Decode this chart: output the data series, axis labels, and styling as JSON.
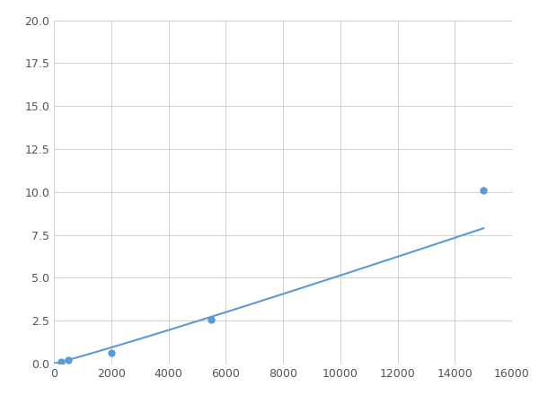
{
  "x": [
    245,
    490,
    2000,
    5500,
    15000
  ],
  "y": [
    0.13,
    0.2,
    0.65,
    2.55,
    10.1
  ],
  "line_color": "#5b9bd5",
  "marker_color": "#5b9bd5",
  "marker_size": 5,
  "xlim": [
    0,
    16000
  ],
  "ylim": [
    0,
    20.0
  ],
  "xticks": [
    0,
    2000,
    4000,
    6000,
    8000,
    10000,
    12000,
    14000,
    16000
  ],
  "yticks": [
    0.0,
    2.5,
    5.0,
    7.5,
    10.0,
    12.5,
    15.0,
    17.5,
    20.0
  ],
  "grid": true,
  "background_color": "#ffffff",
  "figsize": [
    6.0,
    4.5
  ],
  "dpi": 100
}
